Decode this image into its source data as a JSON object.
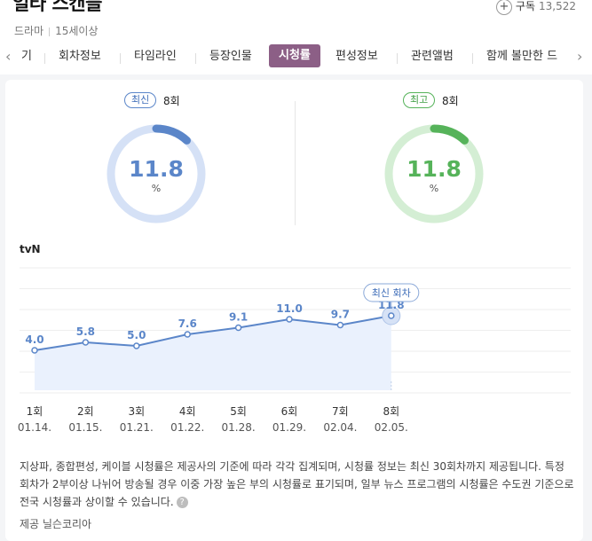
{
  "header": {
    "title": "일타 스캔들",
    "genre": "드라마",
    "age_rating": "15세이상",
    "subscribe_label": "구독",
    "subscribe_count": "13,522"
  },
  "tabs": [
    "기",
    "회차정보",
    "타임라인",
    "등장인물",
    "시청률",
    "편성정보",
    "관련앨범",
    "함께 볼만한 드"
  ],
  "active_tab": "시청률",
  "summary": {
    "latest": {
      "badge": "최신",
      "episode": "8회",
      "rating": "11.8",
      "unit": "%",
      "color": "#5b86c9"
    },
    "best": {
      "badge": "최고",
      "episode": "8회",
      "rating": "11.8",
      "unit": "%",
      "color": "#56b35a"
    },
    "gauge_fraction": 0.118
  },
  "channel": "tvN",
  "chart_data": {
    "type": "line",
    "series": [
      {
        "name": "tvN",
        "values": [
          4.0,
          5.8,
          5.0,
          7.6,
          9.1,
          11.0,
          9.7,
          11.8
        ]
      }
    ],
    "categories": [
      "1회",
      "2회",
      "3회",
      "4회",
      "5회",
      "6회",
      "7회",
      "8회"
    ],
    "dates": [
      "01.14.",
      "01.15.",
      "01.21.",
      "01.22.",
      "01.28.",
      "01.29.",
      "02.04.",
      "02.05."
    ],
    "value_labels": [
      "4.0",
      "5.8",
      "5.0",
      "7.6",
      "9.1",
      "11.0",
      "9.7",
      "11.8"
    ],
    "ylim": [
      -5,
      25
    ],
    "grid": true,
    "latest_label": "최신 회차",
    "line_color": "#5b86c9"
  },
  "notice": "지상파, 종합편성, 케이블 시청률은 제공사의 기준에 따라 각각 집계되며, 시청률 정보는 최신 30회차까지 제공됩니다. 특정 회차가 2부이상 나뉘어 방송될 경우 이중 가장 높은 부의 시청률로 표기되며, 일부 뉴스 프로그램의 시청률은 수도권 기준으로 전국 시청률과 상이할 수 있습니다.",
  "source": "제공 닐슨코리아"
}
